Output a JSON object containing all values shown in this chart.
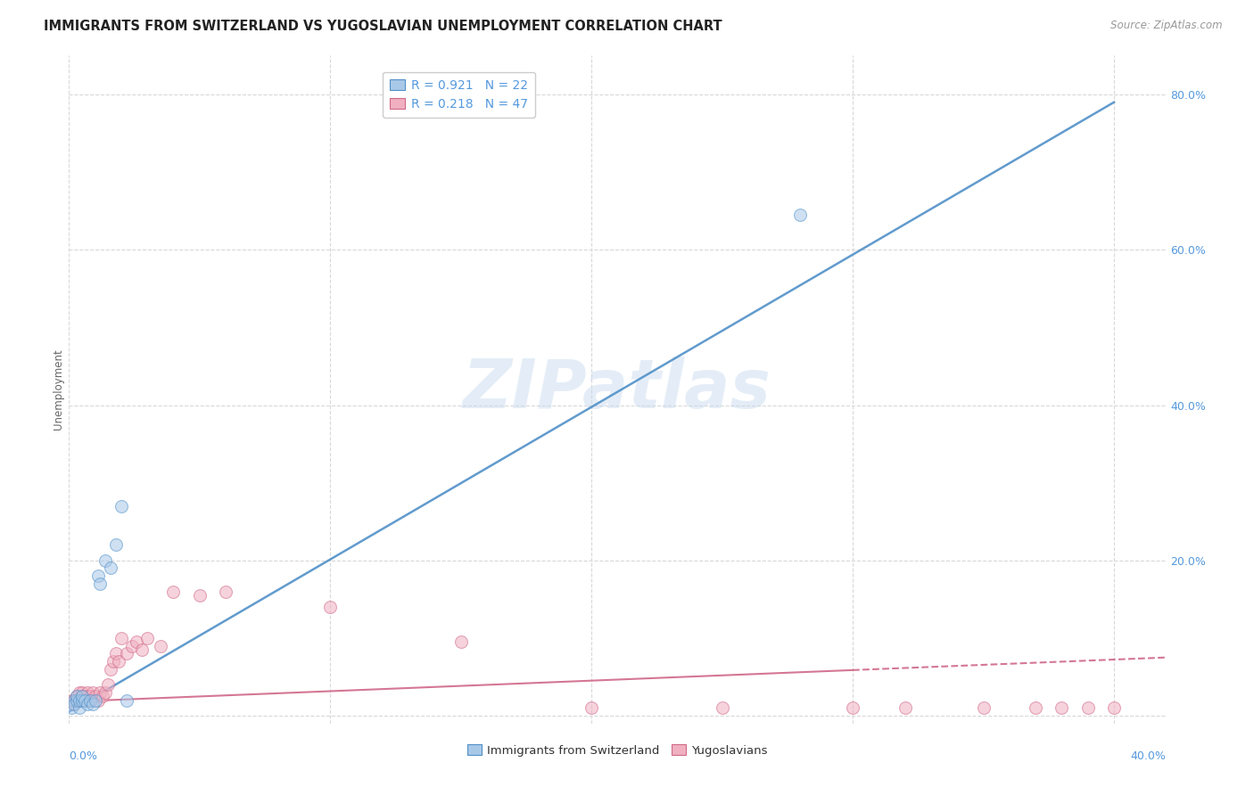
{
  "title": "IMMIGRANTS FROM SWITZERLAND VS YUGOSLAVIAN UNEMPLOYMENT CORRELATION CHART",
  "source": "Source: ZipAtlas.com",
  "ylabel": "Unemployment",
  "xlim": [
    0.0,
    0.42
  ],
  "ylim": [
    -0.01,
    0.85
  ],
  "yticks": [
    0.0,
    0.2,
    0.4,
    0.6,
    0.8
  ],
  "background_color": "#ffffff",
  "watermark_text": "ZIPatlas",
  "legend_line1": "R = 0.921   N = 22",
  "legend_line2": "R = 0.218   N = 47",
  "swiss_scatter_x": [
    0.001,
    0.002,
    0.002,
    0.003,
    0.003,
    0.004,
    0.004,
    0.005,
    0.005,
    0.006,
    0.007,
    0.008,
    0.009,
    0.01,
    0.011,
    0.012,
    0.014,
    0.016,
    0.018,
    0.02,
    0.022,
    0.28
  ],
  "swiss_scatter_y": [
    0.01,
    0.02,
    0.015,
    0.02,
    0.025,
    0.01,
    0.02,
    0.02,
    0.025,
    0.02,
    0.015,
    0.02,
    0.015,
    0.02,
    0.18,
    0.17,
    0.2,
    0.19,
    0.22,
    0.27,
    0.02,
    0.645
  ],
  "swiss_line_x": [
    0.0,
    0.4
  ],
  "swiss_line_y": [
    0.005,
    0.79
  ],
  "yugo_scatter_x": [
    0.001,
    0.002,
    0.002,
    0.003,
    0.003,
    0.004,
    0.004,
    0.005,
    0.005,
    0.006,
    0.006,
    0.007,
    0.007,
    0.008,
    0.008,
    0.009,
    0.01,
    0.011,
    0.012,
    0.013,
    0.014,
    0.015,
    0.016,
    0.017,
    0.018,
    0.019,
    0.02,
    0.022,
    0.024,
    0.026,
    0.028,
    0.03,
    0.035,
    0.04,
    0.05,
    0.06,
    0.1,
    0.15,
    0.2,
    0.25,
    0.3,
    0.32,
    0.35,
    0.37,
    0.38,
    0.39,
    0.4
  ],
  "yugo_scatter_y": [
    0.02,
    0.015,
    0.02,
    0.02,
    0.025,
    0.03,
    0.02,
    0.025,
    0.03,
    0.025,
    0.02,
    0.025,
    0.03,
    0.025,
    0.02,
    0.03,
    0.025,
    0.02,
    0.03,
    0.025,
    0.03,
    0.04,
    0.06,
    0.07,
    0.08,
    0.07,
    0.1,
    0.08,
    0.09,
    0.095,
    0.085,
    0.1,
    0.09,
    0.16,
    0.155,
    0.16,
    0.14,
    0.095,
    0.01,
    0.01,
    0.01,
    0.01,
    0.01,
    0.01,
    0.01,
    0.01,
    0.01
  ],
  "yugo_line_x": [
    0.0,
    0.42
  ],
  "yugo_line_y": [
    0.018,
    0.075
  ],
  "yugo_line_solid_end": 0.3,
  "swiss_color": "#a8c8e8",
  "swiss_edge_color": "#5090c8",
  "yugo_color": "#f0b0c0",
  "yugo_edge_color": "#d06888",
  "scatter_size": 100,
  "scatter_alpha": 0.55,
  "line_alpha": 0.9,
  "grid_color": "#d8d8d8",
  "grid_style": "--",
  "title_fontsize": 10.5,
  "axis_label_fontsize": 8.5,
  "tick_fontsize": 9,
  "legend_fontsize": 10,
  "right_tick_color": "#5599dd",
  "bottom_tick_color": "#5599dd"
}
